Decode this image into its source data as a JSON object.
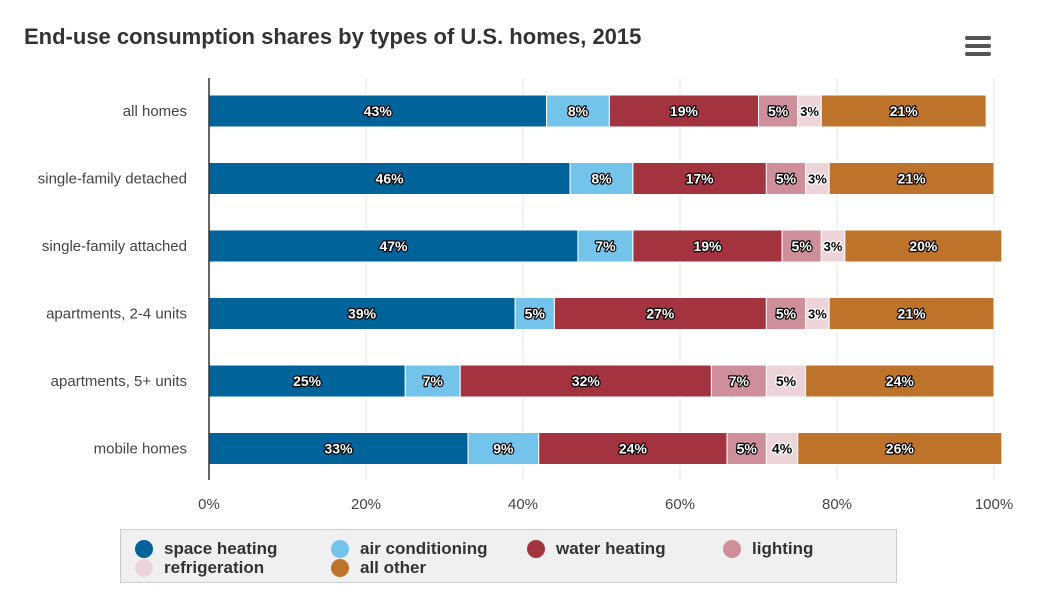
{
  "title": "End-use consumption shares by types of U.S. homes, 2015",
  "menu": {
    "icon": "hamburger-menu-icon"
  },
  "chart_data": {
    "type": "bar",
    "orientation": "horizontal",
    "stacking": "percent",
    "categories": [
      "all homes",
      "single-family detached",
      "single-family attached",
      "apartments, 2-4 units",
      "apartments, 5+ units",
      "mobile homes"
    ],
    "series": [
      {
        "name": "space heating",
        "color": "#00649b",
        "values": [
          43,
          46,
          47,
          39,
          25,
          33
        ]
      },
      {
        "name": "air conditioning",
        "color": "#73c3ea",
        "values": [
          8,
          8,
          7,
          5,
          7,
          9
        ]
      },
      {
        "name": "water heating",
        "color": "#a3333f",
        "values": [
          19,
          17,
          19,
          27,
          32,
          24
        ]
      },
      {
        "name": "lighting",
        "color": "#cf8f9a",
        "values": [
          5,
          5,
          5,
          5,
          7,
          5
        ]
      },
      {
        "name": "refrigeration",
        "color": "#ecd4d8",
        "values": [
          3,
          3,
          3,
          3,
          5,
          4
        ]
      },
      {
        "name": "all other",
        "color": "#bd732a",
        "values": [
          21,
          21,
          20,
          21,
          24,
          26
        ]
      }
    ],
    "xlim": [
      0,
      100
    ],
    "xticks": [
      "0%",
      "20%",
      "40%",
      "60%",
      "80%",
      "100%"
    ],
    "value_suffix": "%",
    "grid": true,
    "legend_position": "bottom"
  }
}
